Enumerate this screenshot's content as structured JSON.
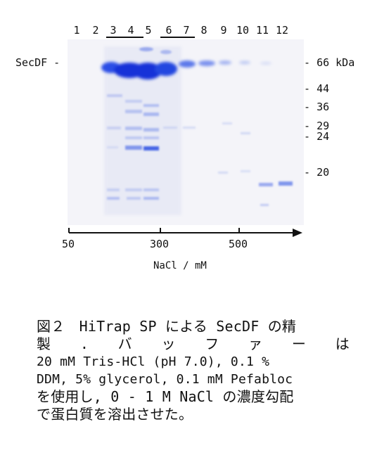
{
  "gel": {
    "lanes": [
      "1",
      "2",
      "3",
      "4",
      "5",
      "6",
      "7",
      "8",
      "9",
      "10",
      "11",
      "12"
    ],
    "band_label": "SecDF",
    "markers": [
      "66 kDa",
      "44",
      "36",
      "29",
      "24",
      "20"
    ]
  },
  "axis": {
    "ticks": [
      "50",
      "300",
      "500"
    ],
    "title": "NaCl / mM"
  },
  "caption": {
    "line1": "図２　HiTrap SP による SecDF の精",
    "line2_chars": [
      "製",
      ".",
      "バ",
      "ッ",
      "フ",
      "ァ",
      "ー",
      "は"
    ],
    "line3": "20 mM Tris-HCl (pH 7.0), 0.1 %",
    "line4": "DDM, 5% glycerol, 0.1 mM Pefabloc",
    "line5": "を使用し, 0 - 1 M NaCl の濃度勾配",
    "line6": "で蛋白質を溶出させた。"
  },
  "colors": {
    "stain": "#1f3fe0",
    "gel_bg": "#f4f4f9"
  }
}
